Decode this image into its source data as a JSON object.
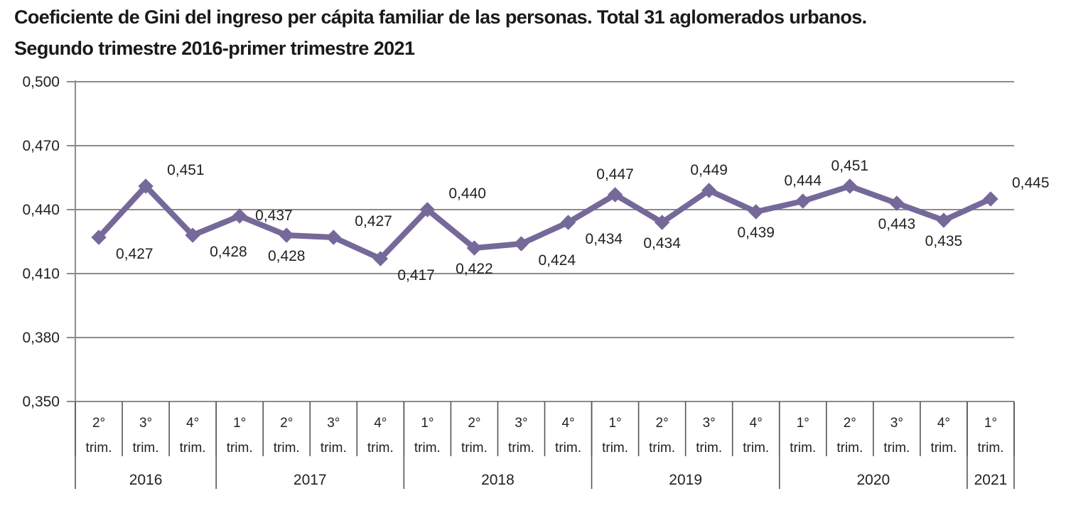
{
  "title_line1": "Coeficiente de Gini del ingreso per cápita familiar de las personas. Total 31 aglomerados urbanos.",
  "title_line2": "Segundo trimestre 2016-primer trimestre 2021",
  "colors": {
    "line": "#75699A",
    "grid": "#8c8c8c",
    "text": "#1a1a1a"
  },
  "chart_data": {
    "type": "line",
    "title": "Coeficiente de Gini del ingreso per cápita familiar de las personas. Total 31 aglomerados urbanos. Segundo trimestre 2016-primer trimestre 2021",
    "ylim": [
      0.35,
      0.5
    ],
    "yticks": [
      "0,500",
      "0,470",
      "0,440",
      "0,410",
      "0,380",
      "0,350"
    ],
    "categories": [
      {
        "q": "2°",
        "t": "trim."
      },
      {
        "q": "3°",
        "t": "trim."
      },
      {
        "q": "4°",
        "t": "trim."
      },
      {
        "q": "1°",
        "t": "trim."
      },
      {
        "q": "2°",
        "t": "trim."
      },
      {
        "q": "3°",
        "t": "trim."
      },
      {
        "q": "4°",
        "t": "trim."
      },
      {
        "q": "1°",
        "t": "trim."
      },
      {
        "q": "2°",
        "t": "trim."
      },
      {
        "q": "3°",
        "t": "trim."
      },
      {
        "q": "4°",
        "t": "trim."
      },
      {
        "q": "1°",
        "t": "trim."
      },
      {
        "q": "2°",
        "t": "trim."
      },
      {
        "q": "3°",
        "t": "trim."
      },
      {
        "q": "4°",
        "t": "trim."
      },
      {
        "q": "1°",
        "t": "trim."
      },
      {
        "q": "2°",
        "t": "trim."
      },
      {
        "q": "3°",
        "t": "trim."
      },
      {
        "q": "4°",
        "t": "trim."
      },
      {
        "q": "1°",
        "t": "trim."
      }
    ],
    "years": [
      {
        "label": "2016",
        "count": 3
      },
      {
        "label": "2017",
        "count": 4
      },
      {
        "label": "2018",
        "count": 4
      },
      {
        "label": "2019",
        "count": 4
      },
      {
        "label": "2020",
        "count": 4
      },
      {
        "label": "2021",
        "count": 1
      }
    ],
    "values": [
      0.427,
      0.451,
      0.428,
      0.437,
      0.428,
      0.427,
      0.417,
      0.44,
      0.422,
      0.424,
      0.434,
      0.447,
      0.434,
      0.449,
      0.439,
      0.444,
      0.451,
      0.443,
      0.435,
      0.445
    ],
    "value_labels": [
      "0,427",
      "0,451",
      "0,428",
      "0,437",
      "0,428",
      "0,427",
      "0,417",
      "0,440",
      "0,422",
      "0,424",
      "0,434",
      "0,447",
      "0,434",
      "0,449",
      "0,439",
      "0,444",
      "0,451",
      "0,443",
      "0,435",
      "0,445"
    ],
    "label_positions": [
      "below-right",
      "above-right",
      "below-right",
      "right",
      "below",
      "above-right",
      "below-right",
      "above-right",
      "below",
      "below-right",
      "below-right",
      "above",
      "below",
      "above",
      "below",
      "above",
      "above",
      "below",
      "below",
      "above-right"
    ],
    "grid": true,
    "legend": "none"
  }
}
